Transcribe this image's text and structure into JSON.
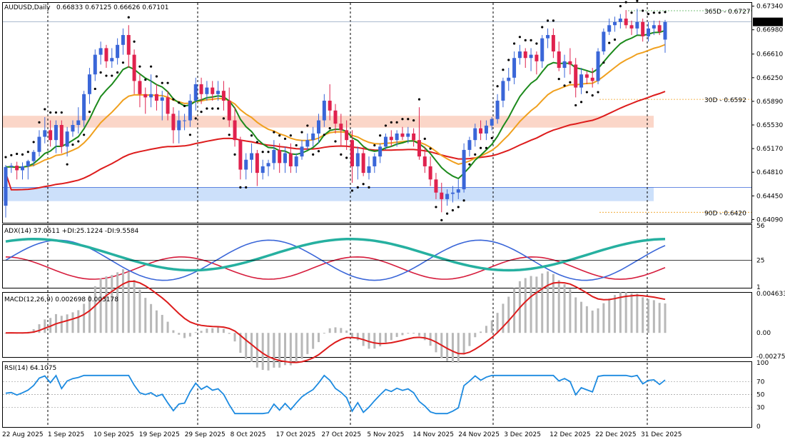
{
  "header": {
    "symbol": "AUDUSD,Daily",
    "ohlc": "0.66833 0.67125 0.66626 0.67101"
  },
  "colors": {
    "bull": "#3a66d8",
    "bear": "#e0224e",
    "ema_fast": "#1c8a1c",
    "ema_mid": "#f0a01e",
    "ema_slow": "#dd1c1c",
    "sar": "#000000",
    "adx": "#26b0a0",
    "plus_di": "#3a66d8",
    "minus_di": "#d61c3c",
    "macd_hist": "#b8b8b8",
    "macd_signal": "#dd1c1c",
    "rsi": "#1c8ae0",
    "zone_upper": "#fbd6c8",
    "zone_lower": "#cce0fa",
    "level_365": "#4caf50",
    "level_30": "#f0a01e",
    "level_90": "#f0a01e"
  },
  "price_panel": {
    "current_price": "0.67101",
    "y_ticks": [
      "0.67340",
      "0.66980",
      "0.66610",
      "0.66250",
      "0.65890",
      "0.65530",
      "0.65170",
      "0.64810",
      "0.64450",
      "0.64090"
    ],
    "levels": [
      {
        "label": "365D - 0.6727",
        "value": 0.6727
      },
      {
        "label": "30D - 0.6592",
        "value": 0.6592
      },
      {
        "label": "90D - 0.6420",
        "value": 0.642
      }
    ],
    "zones": [
      {
        "from": 0.6549,
        "to": 0.6567
      },
      {
        "from": 0.6437,
        "to": 0.6458
      }
    ]
  },
  "adx_panel": {
    "header": "ADX(14) 37.0511 +DI:25.1224 -DI:9.5584",
    "y_ticks": [
      "56",
      "25",
      "1"
    ],
    "level_label": "25"
  },
  "macd_panel": {
    "header": "MACD(12,26,9) 0.002698 0.003178",
    "y_ticks": [
      "0.004633",
      "0.00",
      "-0.002753"
    ]
  },
  "rsi_panel": {
    "header": "RSI(14) 64.1075",
    "y_ticks": [
      "100",
      "70",
      "50",
      "30",
      "0"
    ]
  },
  "x_labels": [
    "22 Aug 2025",
    "1 Sep 2025",
    "10 Sep 2025",
    "19 Sep 2025",
    "29 Sep 2025",
    "8 Oct 2025",
    "17 Oct 2025",
    "27 Oct 2025",
    "5 Nov 2025",
    "14 Nov 2025",
    "24 Nov 2025",
    "3 Dec 2025",
    "12 Dec 2025",
    "22 Dec 2025",
    "31 Dec 2025"
  ],
  "chart_data": {
    "type": "candlestick",
    "title": "AUDUSD,Daily",
    "ylim": [
      0.6404,
      0.6739
    ],
    "candles": [
      [
        0.643,
        0.6492,
        0.6412,
        0.6489
      ],
      [
        0.6489,
        0.6495,
        0.648,
        0.6491
      ],
      [
        0.6491,
        0.6497,
        0.647,
        0.6484
      ],
      [
        0.6484,
        0.6496,
        0.647,
        0.649
      ],
      [
        0.649,
        0.65,
        0.647,
        0.6498
      ],
      [
        0.6498,
        0.6515,
        0.649,
        0.6512
      ],
      [
        0.6512,
        0.6545,
        0.6505,
        0.6535
      ],
      [
        0.6535,
        0.6565,
        0.6525,
        0.6545
      ],
      [
        0.6545,
        0.656,
        0.652,
        0.653
      ],
      [
        0.653,
        0.656,
        0.651,
        0.6553
      ],
      [
        0.6553,
        0.656,
        0.651,
        0.652
      ],
      [
        0.652,
        0.655,
        0.6505,
        0.6543
      ],
      [
        0.6543,
        0.656,
        0.6535,
        0.6553
      ],
      [
        0.6553,
        0.658,
        0.654,
        0.656
      ],
      [
        0.656,
        0.6605,
        0.655,
        0.66
      ],
      [
        0.66,
        0.664,
        0.6585,
        0.663
      ],
      [
        0.663,
        0.6668,
        0.662,
        0.666
      ],
      [
        0.666,
        0.668,
        0.6645,
        0.667
      ],
      [
        0.667,
        0.6675,
        0.664,
        0.665
      ],
      [
        0.665,
        0.667,
        0.664,
        0.6655
      ],
      [
        0.6655,
        0.6685,
        0.6645,
        0.6675
      ],
      [
        0.6675,
        0.67,
        0.666,
        0.669
      ],
      [
        0.669,
        0.6705,
        0.664,
        0.666
      ],
      [
        0.666,
        0.6668,
        0.66,
        0.662
      ],
      [
        0.662,
        0.663,
        0.658,
        0.66
      ],
      [
        0.66,
        0.661,
        0.657,
        0.6595
      ],
      [
        0.6595,
        0.663,
        0.658,
        0.66
      ],
      [
        0.66,
        0.6615,
        0.6575,
        0.659
      ],
      [
        0.659,
        0.6605,
        0.656,
        0.6595
      ],
      [
        0.6595,
        0.6605,
        0.656,
        0.657
      ],
      [
        0.657,
        0.658,
        0.6525,
        0.6545
      ],
      [
        0.6545,
        0.6575,
        0.6525,
        0.656
      ],
      [
        0.656,
        0.657,
        0.6545,
        0.656
      ],
      [
        0.656,
        0.66,
        0.655,
        0.659
      ],
      [
        0.659,
        0.6625,
        0.6575,
        0.6615
      ],
      [
        0.6615,
        0.6625,
        0.6585,
        0.66
      ],
      [
        0.66,
        0.662,
        0.659,
        0.661
      ],
      [
        0.661,
        0.662,
        0.659,
        0.66
      ],
      [
        0.66,
        0.662,
        0.659,
        0.6605
      ],
      [
        0.6605,
        0.662,
        0.6575,
        0.659
      ],
      [
        0.659,
        0.661,
        0.655,
        0.656
      ],
      [
        0.656,
        0.658,
        0.652,
        0.653
      ],
      [
        0.653,
        0.6535,
        0.647,
        0.6485
      ],
      [
        0.6485,
        0.651,
        0.647,
        0.65
      ],
      [
        0.65,
        0.6525,
        0.648,
        0.651
      ],
      [
        0.651,
        0.6515,
        0.646,
        0.648
      ],
      [
        0.648,
        0.65,
        0.647,
        0.649
      ],
      [
        0.649,
        0.65,
        0.6475,
        0.6495
      ],
      [
        0.6495,
        0.653,
        0.6485,
        0.6515
      ],
      [
        0.6515,
        0.6525,
        0.648,
        0.6495
      ],
      [
        0.6495,
        0.652,
        0.648,
        0.651
      ],
      [
        0.651,
        0.6525,
        0.648,
        0.649
      ],
      [
        0.649,
        0.651,
        0.648,
        0.6505
      ],
      [
        0.6505,
        0.653,
        0.65,
        0.652
      ],
      [
        0.652,
        0.654,
        0.6515,
        0.653
      ],
      [
        0.653,
        0.655,
        0.652,
        0.654
      ],
      [
        0.654,
        0.657,
        0.6525,
        0.656
      ],
      [
        0.656,
        0.66,
        0.655,
        0.659
      ],
      [
        0.659,
        0.6615,
        0.656,
        0.6575
      ],
      [
        0.6575,
        0.6585,
        0.654,
        0.6555
      ],
      [
        0.6555,
        0.657,
        0.652,
        0.6545
      ],
      [
        0.6545,
        0.656,
        0.6515,
        0.653
      ],
      [
        0.653,
        0.6545,
        0.6465,
        0.649
      ],
      [
        0.649,
        0.652,
        0.647,
        0.651
      ],
      [
        0.651,
        0.652,
        0.6475,
        0.648
      ],
      [
        0.648,
        0.6505,
        0.647,
        0.649
      ],
      [
        0.649,
        0.651,
        0.648,
        0.6505
      ],
      [
        0.6505,
        0.6525,
        0.6495,
        0.652
      ],
      [
        0.652,
        0.654,
        0.6515,
        0.6535
      ],
      [
        0.6535,
        0.6545,
        0.652,
        0.653
      ],
      [
        0.653,
        0.6545,
        0.652,
        0.654
      ],
      [
        0.654,
        0.655,
        0.653,
        0.6535
      ],
      [
        0.6535,
        0.655,
        0.6525,
        0.654
      ],
      [
        0.654,
        0.6548,
        0.652,
        0.653
      ],
      [
        0.653,
        0.658,
        0.65,
        0.6505
      ],
      [
        0.6505,
        0.652,
        0.648,
        0.649
      ],
      [
        0.649,
        0.6505,
        0.646,
        0.647
      ],
      [
        0.647,
        0.648,
        0.644,
        0.645
      ],
      [
        0.645,
        0.6465,
        0.642,
        0.644
      ],
      [
        0.644,
        0.6455,
        0.643,
        0.6448
      ],
      [
        0.6448,
        0.646,
        0.6435,
        0.645
      ],
      [
        0.645,
        0.647,
        0.644,
        0.6455
      ],
      [
        0.6455,
        0.6525,
        0.645,
        0.6515
      ],
      [
        0.6515,
        0.6535,
        0.6505,
        0.653
      ],
      [
        0.653,
        0.6555,
        0.652,
        0.6548
      ],
      [
        0.6548,
        0.656,
        0.653,
        0.654
      ],
      [
        0.654,
        0.656,
        0.653,
        0.6552
      ],
      [
        0.6552,
        0.6565,
        0.6545,
        0.6562
      ],
      [
        0.6562,
        0.66,
        0.6555,
        0.659
      ],
      [
        0.659,
        0.6625,
        0.658,
        0.662
      ],
      [
        0.662,
        0.664,
        0.6605,
        0.6625
      ],
      [
        0.6625,
        0.6665,
        0.6615,
        0.6655
      ],
      [
        0.6655,
        0.6675,
        0.6645,
        0.6665
      ],
      [
        0.6665,
        0.667,
        0.664,
        0.6655
      ],
      [
        0.6655,
        0.667,
        0.6635,
        0.666
      ],
      [
        0.666,
        0.6665,
        0.663,
        0.665
      ],
      [
        0.665,
        0.669,
        0.664,
        0.6685
      ],
      [
        0.6685,
        0.67,
        0.667,
        0.669
      ],
      [
        0.669,
        0.67,
        0.6655,
        0.6665
      ],
      [
        0.6665,
        0.668,
        0.6635,
        0.664
      ],
      [
        0.664,
        0.666,
        0.6625,
        0.665
      ],
      [
        0.665,
        0.667,
        0.663,
        0.6645
      ],
      [
        0.6645,
        0.6655,
        0.6595,
        0.661
      ],
      [
        0.661,
        0.664,
        0.66,
        0.663
      ],
      [
        0.663,
        0.6635,
        0.6615,
        0.6625
      ],
      [
        0.6625,
        0.664,
        0.661,
        0.662
      ],
      [
        0.662,
        0.667,
        0.6615,
        0.6665
      ],
      [
        0.6665,
        0.67,
        0.666,
        0.6695
      ],
      [
        0.6695,
        0.6715,
        0.669,
        0.6705
      ],
      [
        0.6705,
        0.6718,
        0.6695,
        0.671
      ],
      [
        0.671,
        0.6722,
        0.67,
        0.6715
      ],
      [
        0.6715,
        0.6728,
        0.67,
        0.6705
      ],
      [
        0.6705,
        0.6712,
        0.669,
        0.67
      ],
      [
        0.67,
        0.673,
        0.669,
        0.671
      ],
      [
        0.671,
        0.6715,
        0.668,
        0.6688
      ],
      [
        0.6688,
        0.671,
        0.668,
        0.67
      ],
      [
        0.67,
        0.6712,
        0.669,
        0.6705
      ],
      [
        0.6705,
        0.6712,
        0.669,
        0.6695
      ],
      [
        0.6683,
        0.6713,
        0.6663,
        0.671
      ]
    ],
    "sar_before": 62,
    "adx": {
      "ylim": [
        1,
        56
      ],
      "level": 25
    },
    "macd": {
      "ylim": [
        -0.002753,
        0.004633
      ]
    },
    "rsi": {
      "ylim": [
        0,
        100
      ],
      "levels": [
        30,
        50,
        70
      ]
    }
  }
}
